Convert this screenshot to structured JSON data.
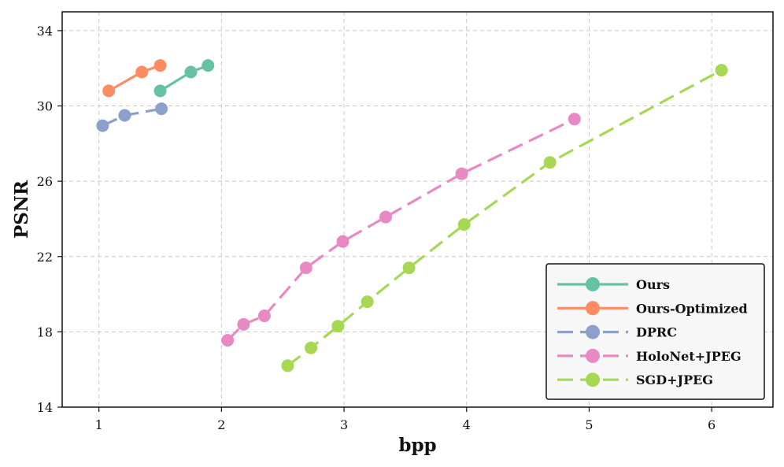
{
  "chart_data": {
    "type": "line",
    "xlabel": "bpp",
    "ylabel": "PSNR",
    "xlim": [
      0.7,
      6.5
    ],
    "ylim": [
      14,
      35
    ],
    "xticks": [
      1,
      2,
      3,
      4,
      5,
      6
    ],
    "yticks": [
      14,
      18,
      22,
      26,
      30,
      34
    ],
    "grid": true,
    "legend_position": "bottom-right",
    "series": [
      {
        "name": "Ours",
        "color": "#66c2a5",
        "dash": "solid",
        "x": [
          1.5,
          1.75,
          1.89
        ],
        "y": [
          30.8,
          31.8,
          32.15
        ]
      },
      {
        "name": "Ours-Optimized",
        "color": "#fc8d62",
        "dash": "solid",
        "x": [
          1.08,
          1.35,
          1.5
        ],
        "y": [
          30.8,
          31.8,
          32.15
        ]
      },
      {
        "name": "DPRC",
        "color": "#8da0cb",
        "dash": "dashed",
        "x": [
          1.03,
          1.21,
          1.51
        ],
        "y": [
          28.95,
          29.5,
          29.85
        ]
      },
      {
        "name": "HoloNet+JPEG",
        "color": "#e78ac3",
        "dash": "dashed",
        "x": [
          2.05,
          2.18,
          2.35,
          2.69,
          2.99,
          3.34,
          3.96,
          4.88
        ],
        "y": [
          17.55,
          18.4,
          18.85,
          21.4,
          22.8,
          24.1,
          26.4,
          29.3
        ]
      },
      {
        "name": "SGD+JPEG",
        "color": "#a6d854",
        "dash": "dashed",
        "x": [
          2.54,
          2.73,
          2.95,
          3.19,
          3.53,
          3.98,
          4.68,
          6.08
        ],
        "y": [
          16.2,
          17.15,
          18.3,
          19.6,
          21.4,
          23.7,
          27.0,
          31.9
        ]
      }
    ]
  }
}
